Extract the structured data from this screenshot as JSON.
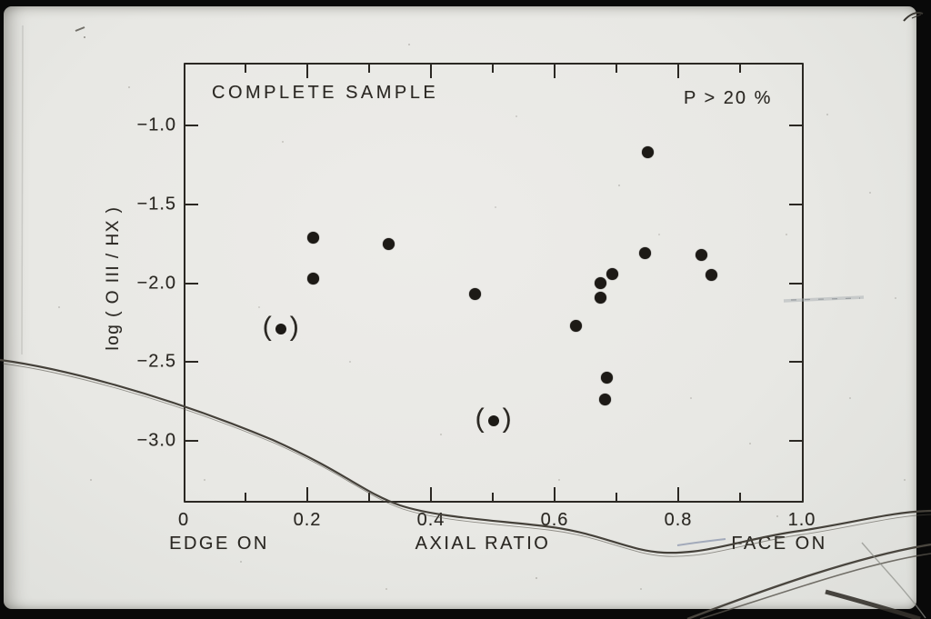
{
  "chart_data": {
    "type": "scatter",
    "title": "COMPLETE SAMPLE",
    "annotation": "P > 20 %",
    "xlabel": "AXIAL RATIO",
    "xlabel_left": "EDGE ON",
    "xlabel_right": "FACE ON",
    "ylabel": "log ( O III / HX )",
    "xlim": [
      0,
      1.0
    ],
    "ylim": [
      -3.4,
      -0.6
    ],
    "grid": false,
    "legend": "none",
    "x_tick_labels": [
      {
        "value": 0.0,
        "label": "0"
      },
      {
        "value": 0.2,
        "label": "0.2"
      },
      {
        "value": 0.4,
        "label": "0.4"
      },
      {
        "value": 0.6,
        "label": "0.6"
      },
      {
        "value": 0.8,
        "label": "0.8"
      },
      {
        "value": 1.0,
        "label": "1.0"
      }
    ],
    "x_major_ticks": [
      0.2,
      0.4,
      0.6,
      0.8
    ],
    "x_minor_ticks": [
      0.1,
      0.3,
      0.5,
      0.7,
      0.9
    ],
    "y_ticks": [
      {
        "value": -1.0,
        "label": "−1.0"
      },
      {
        "value": -1.5,
        "label": "−1.5"
      },
      {
        "value": -2.0,
        "label": "−2.0"
      },
      {
        "value": -2.5,
        "label": "−2.5"
      },
      {
        "value": -3.0,
        "label": "−3.0"
      }
    ],
    "series": [
      {
        "name": "filled points",
        "marker": "filled-circle",
        "points": [
          [
            0.209,
            -1.71
          ],
          [
            0.331,
            -1.755
          ],
          [
            0.209,
            -1.97
          ],
          [
            0.472,
            -2.07
          ],
          [
            0.634,
            -2.27
          ],
          [
            0.674,
            -2.09
          ],
          [
            0.674,
            -2.0
          ],
          [
            0.694,
            -1.945
          ],
          [
            0.684,
            -2.6
          ],
          [
            0.681,
            -2.735
          ],
          [
            0.751,
            -1.17
          ],
          [
            0.746,
            -1.81
          ],
          [
            0.837,
            -1.82
          ],
          [
            0.854,
            -1.95
          ]
        ]
      },
      {
        "name": "parenthesized points",
        "marker": "circle-in-parentheses",
        "marker_glyphs": [
          "(",
          ")"
        ],
        "points": [
          [
            0.157,
            -2.29
          ],
          [
            0.501,
            -2.875
          ]
        ]
      }
    ],
    "ink_color": "#2b2823",
    "paper_color": "#e8e8e4"
  }
}
